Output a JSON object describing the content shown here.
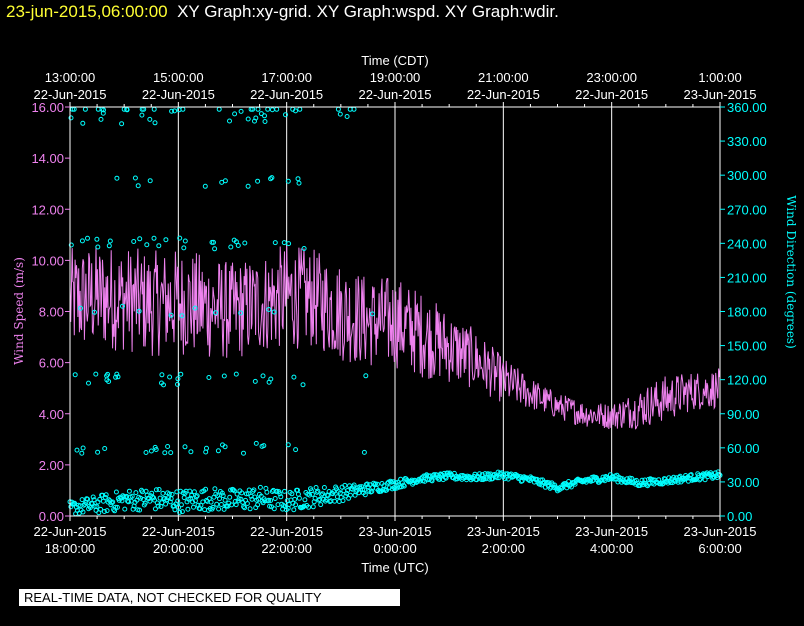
{
  "header": {
    "timestamp": "23-jun-2015,06:00:00",
    "graph_titles": "XY Graph:xy-grid.  XY Graph:wspd.  XY Graph:wdir."
  },
  "disclaimer": "REAL-TIME DATA, NOT CHECKED FOR QUALITY",
  "colors": {
    "speed": "#ee82ee",
    "direction": "#00ffff",
    "grid": "#ffffff",
    "header_timestamp": "#ffff33"
  },
  "chart_data": {
    "type": "line",
    "top_axis_label": "Time (CDT)",
    "bottom_axis_label": "Time (UTC)",
    "left_axis_label": "Wind Speed (m/s)",
    "right_axis_label": "Wind Direction (degrees)",
    "x_range_hours_utc": [
      18,
      30
    ],
    "left_ylim": [
      0,
      16
    ],
    "right_ylim": [
      0,
      360
    ],
    "grid": "vertical",
    "bottom_ticks": [
      {
        "date": "22-Jun-2015",
        "time": "18:00:00"
      },
      {
        "date": "22-Jun-2015",
        "time": "20:00:00"
      },
      {
        "date": "22-Jun-2015",
        "time": "22:00:00"
      },
      {
        "date": "23-Jun-2015",
        "time": "0:00:00"
      },
      {
        "date": "23-Jun-2015",
        "time": "2:00:00"
      },
      {
        "date": "23-Jun-2015",
        "time": "4:00:00"
      },
      {
        "date": "23-Jun-2015",
        "time": "6:00:00"
      }
    ],
    "top_ticks": [
      {
        "time": "13:00:00",
        "date": "22-Jun-2015"
      },
      {
        "time": "15:00:00",
        "date": "22-Jun-2015"
      },
      {
        "time": "17:00:00",
        "date": "22-Jun-2015"
      },
      {
        "time": "19:00:00",
        "date": "22-Jun-2015"
      },
      {
        "time": "21:00:00",
        "date": "22-Jun-2015"
      },
      {
        "time": "23:00:00",
        "date": "22-Jun-2015"
      },
      {
        "time": "1:00:00",
        "date": "23-Jun-2015"
      }
    ],
    "left_ticks": [
      "0.00",
      "2.00",
      "4.00",
      "6.00",
      "8.00",
      "10.00",
      "12.00",
      "14.00",
      "16.00"
    ],
    "right_ticks": [
      "0.00",
      "30.00",
      "60.00",
      "90.00",
      "120.00",
      "150.00",
      "180.00",
      "210.00",
      "240.00",
      "270.00",
      "300.00",
      "330.00",
      "360.00"
    ],
    "series": [
      {
        "name": "wspd",
        "style": "line",
        "y_axis": "left",
        "hours_utc": [
          18,
          18.5,
          19,
          19.5,
          20,
          20.5,
          21,
          21.5,
          22,
          22.5,
          23,
          23.5,
          24,
          24.5,
          25,
          25.5,
          26,
          26.5,
          27,
          27.5,
          28,
          28.5,
          29,
          29.5,
          30
        ],
        "mean": [
          8.4,
          8.6,
          8.5,
          8.3,
          8.4,
          8.2,
          8.0,
          8.3,
          8.6,
          8.5,
          8.0,
          7.6,
          7.6,
          7.1,
          6.6,
          6.1,
          5.3,
          4.8,
          4.3,
          4.0,
          3.9,
          4.2,
          4.6,
          4.9,
          5.0
        ],
        "spread": [
          1.6,
          1.6,
          1.6,
          1.6,
          1.6,
          1.6,
          1.5,
          1.5,
          1.6,
          1.5,
          1.5,
          1.4,
          1.4,
          1.3,
          1.1,
          0.9,
          0.7,
          0.5,
          0.4,
          0.4,
          0.4,
          0.6,
          0.7,
          0.6,
          0.6
        ]
      },
      {
        "name": "wdir",
        "style": "scatter",
        "y_axis": "right",
        "hours_utc": [
          18,
          18.5,
          19,
          19.5,
          20,
          20.5,
          21,
          21.5,
          22,
          22.5,
          23,
          23.5,
          24,
          24.5,
          25,
          25.5,
          26,
          26.5,
          27,
          27.5,
          28,
          28.5,
          29,
          29.5,
          30
        ],
        "mean": [
          7,
          10,
          14,
          15,
          13,
          15,
          14,
          16,
          13,
          17,
          20,
          24,
          28,
          33,
          35,
          34,
          36,
          32,
          25,
          31,
          34,
          29,
          31,
          34,
          36
        ],
        "spread": [
          6,
          8,
          9,
          10,
          10,
          10,
          10,
          10,
          9,
          9,
          7,
          5,
          4,
          3,
          3,
          3,
          3,
          3,
          3,
          3,
          3,
          3,
          3,
          3,
          3
        ],
        "outlier_bands": [
          360,
          350,
          295,
          240,
          180,
          120,
          60
        ]
      }
    ]
  }
}
